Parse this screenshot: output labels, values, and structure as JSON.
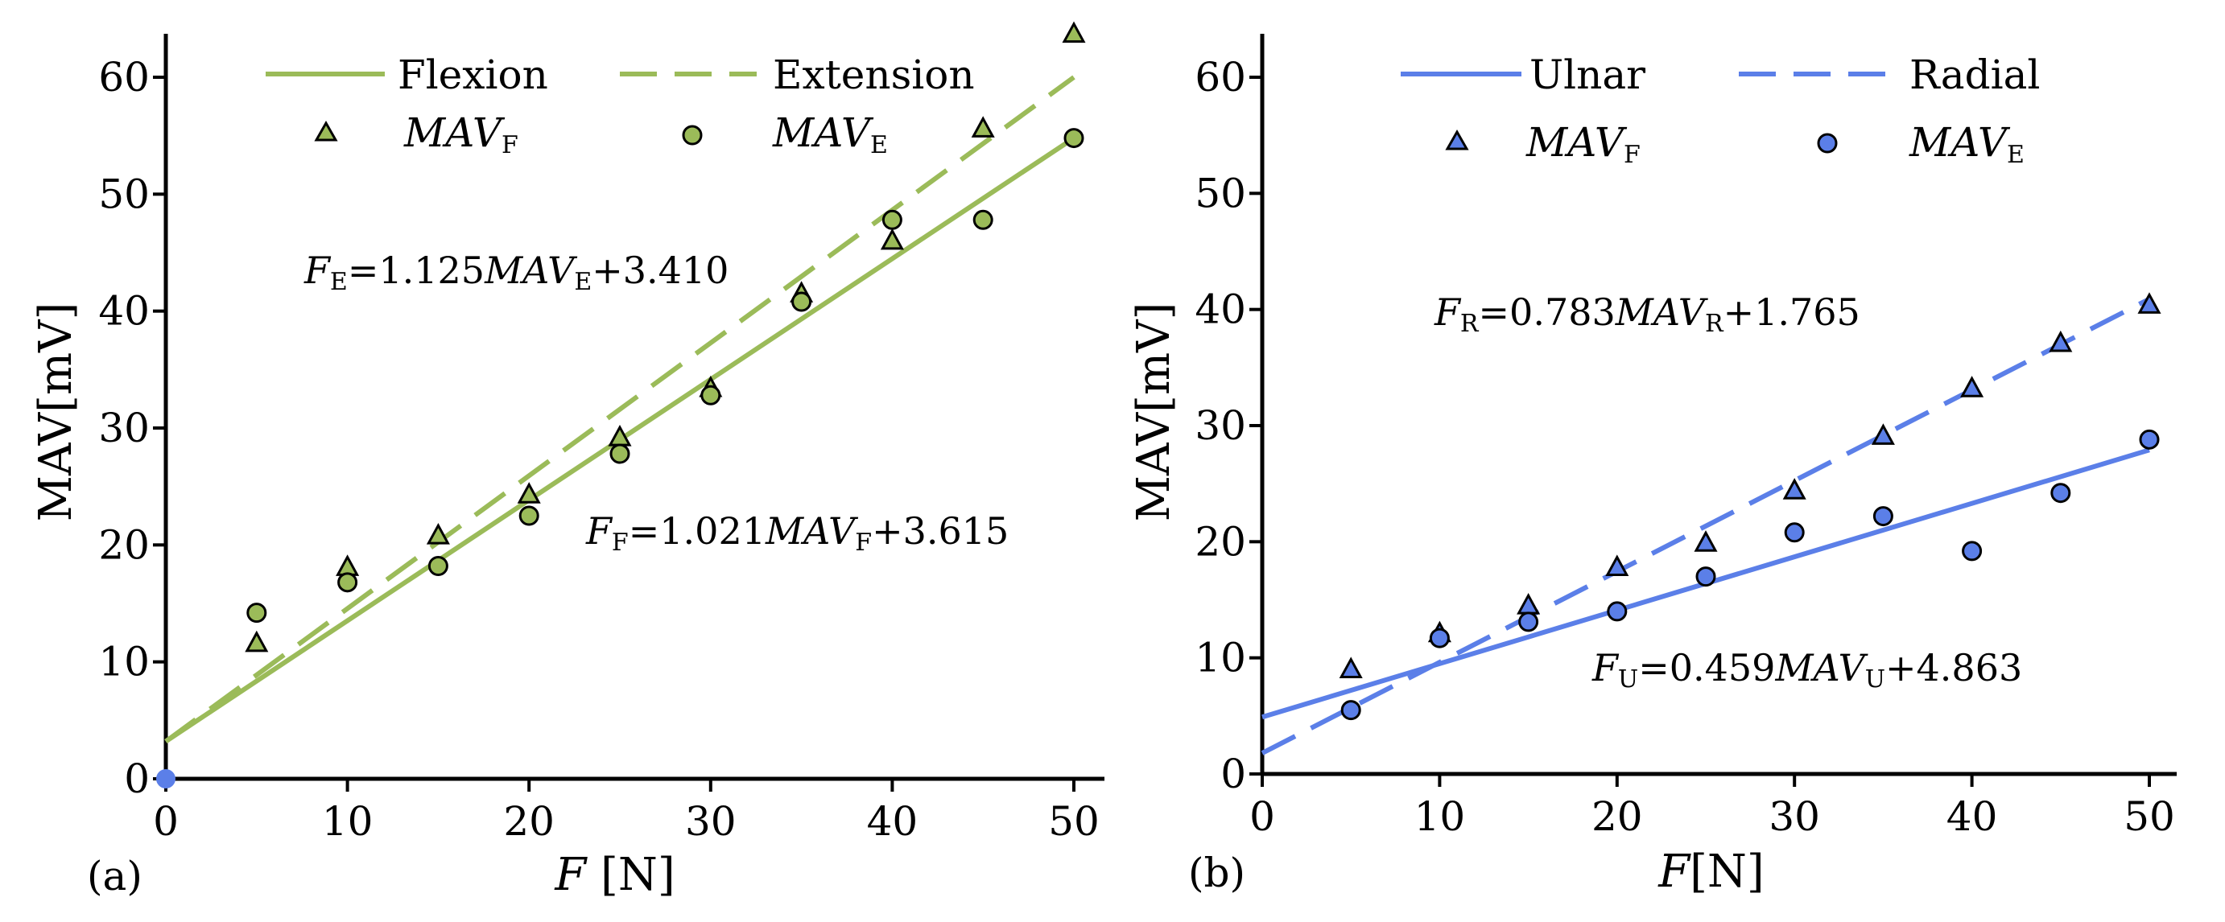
{
  "chart_data": [
    {
      "type": "scatter",
      "panel_label": "(a)",
      "xlabel_var": "F",
      "xlabel_unit": " [N]",
      "ylabel": "MAV[mV]",
      "xlim": [
        0,
        52
      ],
      "ylim": [
        0,
        65
      ],
      "xticks": [
        "0",
        "10",
        "20",
        "30",
        "40",
        "50"
      ],
      "yticks": [
        "0",
        "10",
        "20",
        "30",
        "40",
        "50",
        "60"
      ],
      "color": "#9bbb59",
      "origin_marker_color": "#5b7fe8",
      "legend": {
        "solid_line": "Flexion",
        "dashed_line": "Extension",
        "triangle_main": "MAV",
        "triangle_sub": "F",
        "circle_main": "MAV",
        "circle_sub": "E"
      },
      "series": [
        {
          "name": "MAV_F",
          "marker": "triangle",
          "x": [
            5,
            10,
            15,
            20,
            25,
            30,
            35,
            40,
            45,
            50
          ],
          "y": [
            11.5,
            18,
            20.7,
            24.2,
            29.1,
            33.3,
            41.4,
            45.9,
            55.5,
            63.6
          ]
        },
        {
          "name": "MAV_E",
          "marker": "circle",
          "x": [
            5,
            10,
            15,
            20,
            25,
            30,
            35,
            40,
            45,
            50
          ],
          "y": [
            14.2,
            16.8,
            18.2,
            22.5,
            27.8,
            32.8,
            40.8,
            47.8,
            47.8,
            54.8
          ]
        }
      ],
      "fits": [
        {
          "name": "Flexion",
          "style": "solid",
          "x": [
            0,
            50
          ],
          "y": [
            3.2,
            54.8
          ]
        },
        {
          "name": "Extension",
          "style": "dashed",
          "x": [
            0,
            50
          ],
          "y": [
            3.2,
            60
          ]
        }
      ],
      "equations": [
        {
          "var": "F",
          "var_sub": "E",
          "coef": "=1.125",
          "mav": "MAV",
          "mav_sub": "E",
          "const": "+3.410"
        },
        {
          "var": "F",
          "var_sub": "F",
          "coef": "=1.021",
          "mav": "MAV",
          "mav_sub": "F",
          "const": "+3.615"
        }
      ]
    },
    {
      "type": "scatter",
      "panel_label": "(b)",
      "xlabel_var": "F",
      "xlabel_unit": "[N]",
      "ylabel": "MAV[mV]",
      "xlim": [
        0,
        52
      ],
      "ylim": [
        0,
        65
      ],
      "xticks": [
        "0",
        "10",
        "20",
        "30",
        "40",
        "50"
      ],
      "yticks": [
        "0",
        "10",
        "20",
        "30",
        "40",
        "50",
        "60"
      ],
      "color": "#5b7fe8",
      "legend": {
        "solid_line": "Ulnar",
        "dashed_line": "Radial",
        "triangle_main": "MAV",
        "triangle_sub": "F",
        "circle_main": "MAV",
        "circle_sub": "E"
      },
      "series": [
        {
          "name": "MAV_F",
          "marker": "triangle",
          "x": [
            5,
            10,
            15,
            20,
            25,
            30,
            35,
            40,
            45,
            50
          ],
          "y": [
            8.9,
            12,
            14.4,
            17.7,
            19.8,
            24.3,
            29,
            33.1,
            37,
            40.3
          ]
        },
        {
          "name": "MAV_E",
          "marker": "circle",
          "x": [
            5,
            10,
            15,
            20,
            25,
            30,
            35,
            40,
            45,
            50
          ],
          "y": [
            5.5,
            11.7,
            13.1,
            14,
            17,
            20.8,
            22.2,
            19.2,
            24.2,
            28.8
          ]
        }
      ],
      "fits": [
        {
          "name": "Ulnar",
          "style": "solid",
          "x": [
            0,
            50
          ],
          "y": [
            4.9,
            27.9
          ]
        },
        {
          "name": "Radial",
          "style": "dashed",
          "x": [
            0,
            50
          ],
          "y": [
            1.8,
            40.9
          ]
        }
      ],
      "equations": [
        {
          "var": "F",
          "var_sub": "R",
          "coef": "=0.783",
          "mav": "MAV",
          "mav_sub": "R",
          "const": "+1.765"
        },
        {
          "var": "F",
          "var_sub": "U",
          "coef": "=0.459",
          "mav": "MAV",
          "mav_sub": "U",
          "const": "+4.863"
        }
      ]
    }
  ]
}
